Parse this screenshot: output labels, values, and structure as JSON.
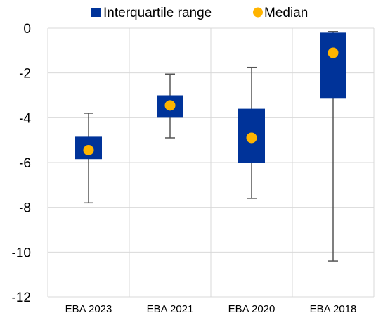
{
  "chart_data": {
    "type": "boxplot",
    "title": "",
    "xlabel": "",
    "ylabel": "",
    "ylim": [
      -12,
      0
    ],
    "yticks": [
      0,
      -2,
      -4,
      -6,
      -8,
      -10,
      -12
    ],
    "ytick_labels": [
      "0",
      "-2",
      "-4",
      "-6",
      "-8",
      "-10",
      "-12"
    ],
    "grid": true,
    "legend_position": "top",
    "legend": [
      {
        "label": "Interquartile range",
        "marker": "square",
        "color": "#003399"
      },
      {
        "label": "Median",
        "marker": "circle",
        "color": "#FFB400"
      }
    ],
    "categories": [
      "EBA 2023",
      "EBA 2021",
      "EBA 2020",
      "EBA 2018"
    ],
    "series": [
      {
        "category": "EBA 2023",
        "min": -7.8,
        "q1": -5.85,
        "median": -5.45,
        "q3": -4.85,
        "max": -3.8
      },
      {
        "category": "EBA 2021",
        "min": -4.9,
        "q1": -4.0,
        "median": -3.45,
        "q3": -3.0,
        "max": -2.05
      },
      {
        "category": "EBA 2020",
        "min": -7.6,
        "q1": -6.0,
        "median": -4.9,
        "q3": -3.6,
        "max": -1.75
      },
      {
        "category": "EBA 2018",
        "min": -10.4,
        "q1": -3.15,
        "median": -1.1,
        "q3": -0.2,
        "max": -0.15
      }
    ],
    "colors": {
      "box": "#003399",
      "median": "#FFB400",
      "whisker": "#555555",
      "grid": "#d9d9d9"
    }
  }
}
